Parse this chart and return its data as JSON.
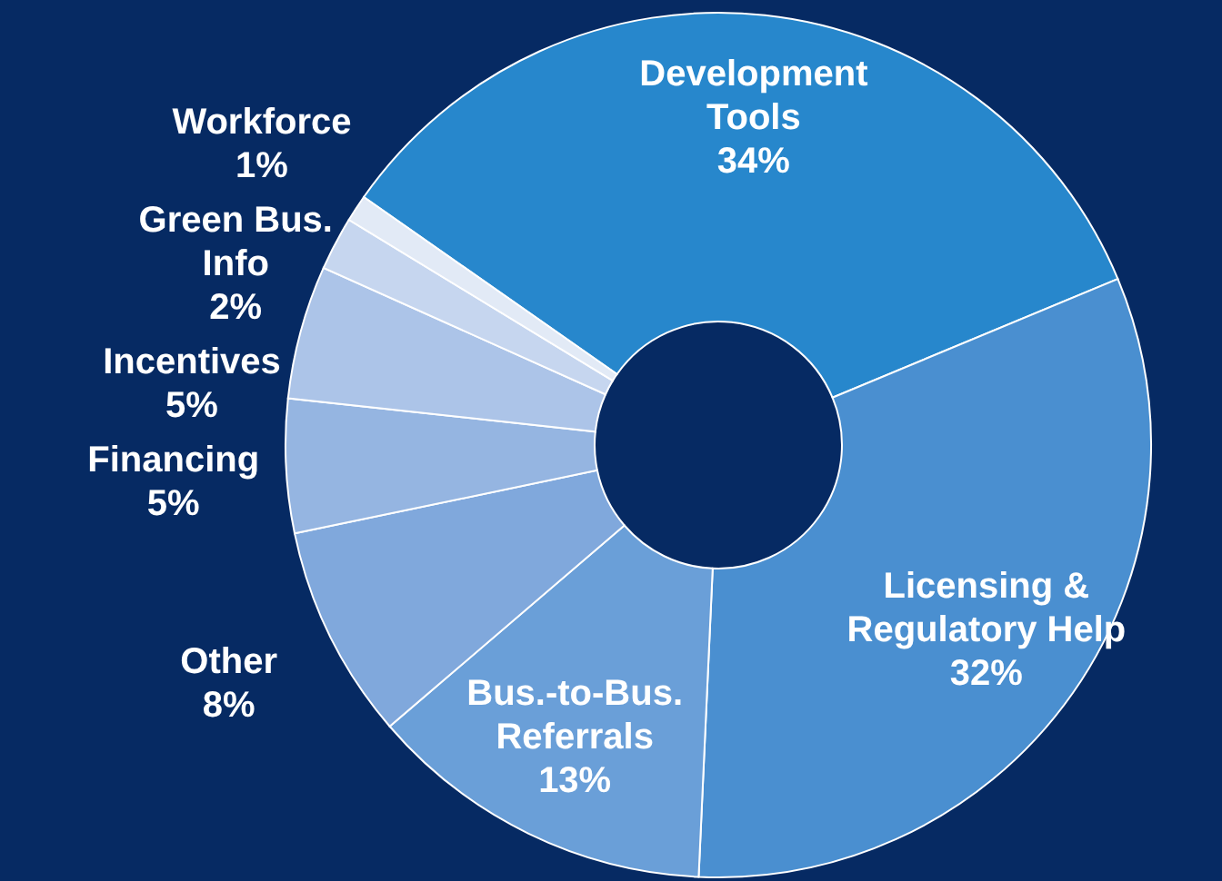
{
  "chart_data": {
    "type": "donut",
    "categories": [
      "Development Tools",
      "Licensing & Regulatory Help",
      "Bus.-to-Bus. Referrals",
      "Other",
      "Financing",
      "Incentives",
      "Green Bus. Info",
      "Workforce"
    ],
    "values": [
      34,
      32,
      13,
      8,
      5,
      5,
      2,
      1
    ],
    "value_labels": [
      "34%",
      "32%",
      "13%",
      "8%",
      "5%",
      "5%",
      "2%",
      "1%"
    ],
    "colors": [
      "#2787cc",
      "#4a8fd0",
      "#6a9fd8",
      "#80a8dc",
      "#95b5e1",
      "#acc4e8",
      "#c6d6ef",
      "#e2eaf6"
    ]
  }
}
